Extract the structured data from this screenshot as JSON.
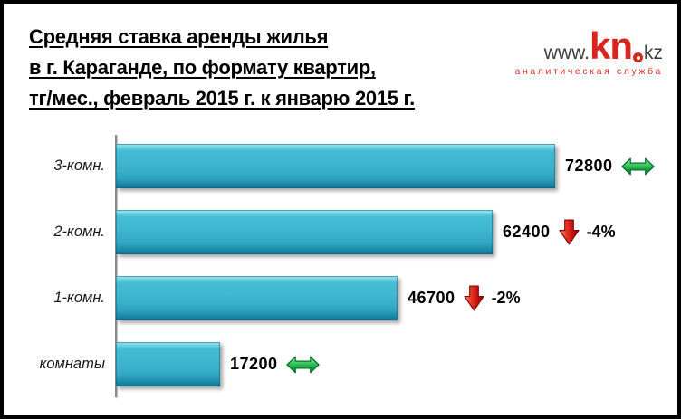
{
  "title": {
    "lines": [
      "Средняя ставка аренды жилья",
      "в г. Караганде, по формату квартир,",
      "тг/мес., февраль 2015 г. к январю 2015 г."
    ]
  },
  "logo": {
    "www": "www.",
    "kn": "kn",
    "kz": "kz",
    "subtitle": "аналитическая служба",
    "accent_color": "#da251c"
  },
  "chart_data": {
    "type": "bar",
    "orientation": "horizontal",
    "title": "Средняя ставка аренды жилья в г. Караганде, по формату квартир, тг/мес., февраль 2015 г. к январю 2015 г.",
    "categories": [
      "3-комн.",
      "2-комн.",
      "1-комн.",
      "комнаты"
    ],
    "values": [
      72800,
      62400,
      46700,
      17200
    ],
    "changes": [
      {
        "direction": "flat",
        "label": ""
      },
      {
        "direction": "down",
        "label": "-4%"
      },
      {
        "direction": "down",
        "label": "-2%"
      },
      {
        "direction": "flat",
        "label": ""
      }
    ],
    "xlim": [
      0,
      78000
    ],
    "grid": false,
    "legend": "none",
    "bar_color": "#3fb6d0",
    "flat_arrow_color": "#1ea84a",
    "down_arrow_color": "#d01111"
  }
}
